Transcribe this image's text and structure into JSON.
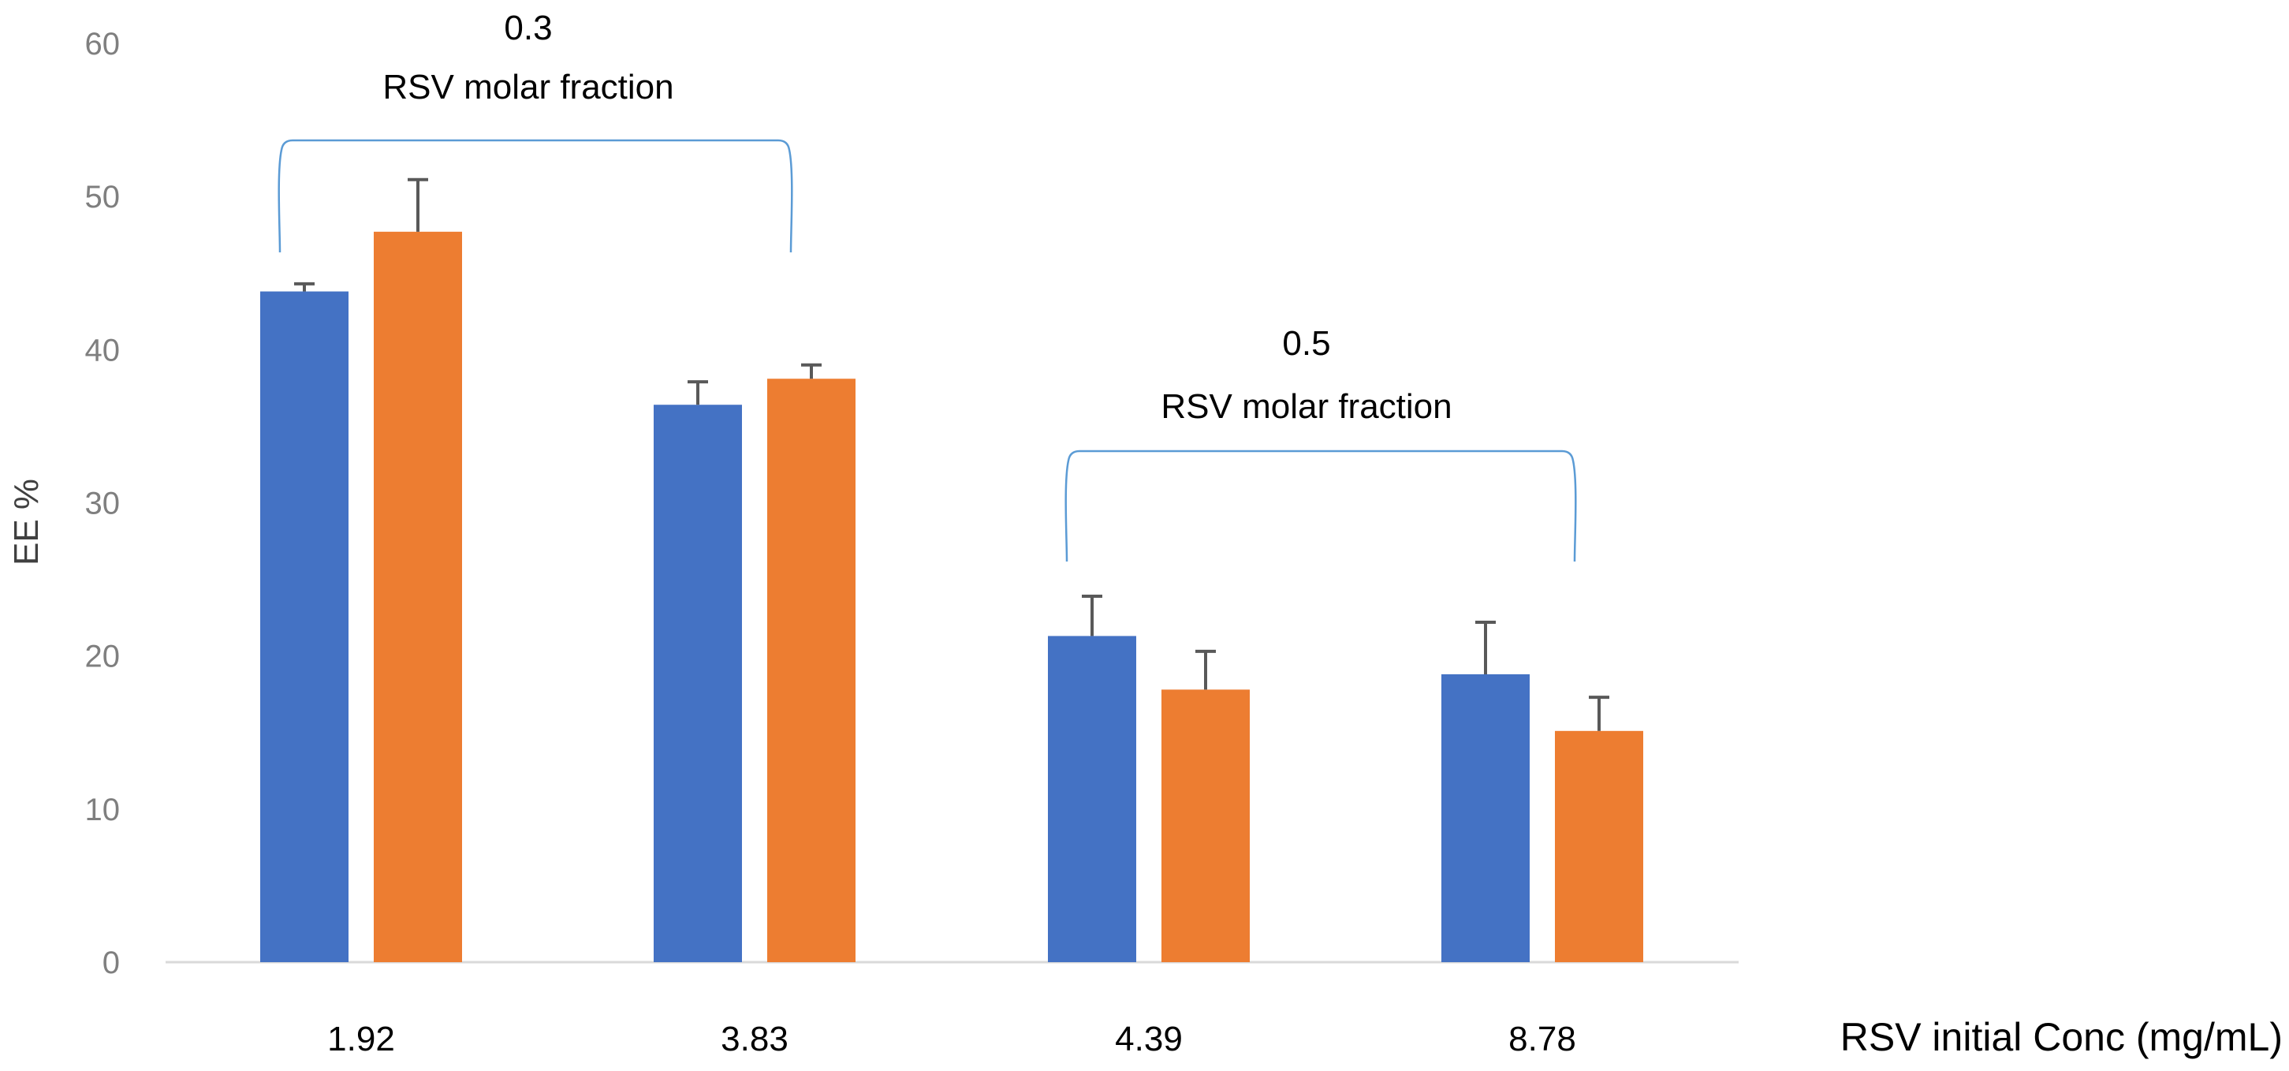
{
  "chart_data": {
    "type": "bar",
    "categories": [
      "1.92",
      "3.83",
      "4.39",
      "8.78"
    ],
    "series": [
      {
        "values": [
          43.8,
          36.4,
          21.3,
          18.8
        ],
        "errors": [
          0.5,
          1.5,
          2.6,
          3.4
        ],
        "color": "#4472c4"
      },
      {
        "values": [
          47.7,
          38.1,
          17.8,
          15.1
        ],
        "errors": [
          3.4,
          0.9,
          2.5,
          2.2
        ],
        "color": "#ed7d31"
      }
    ],
    "xlabel": "RSV initial Conc (mg/mL)",
    "ylabel": "EE %",
    "ylim": [
      0,
      60
    ],
    "yticks": [
      "0",
      "10",
      "20",
      "30",
      "40",
      "50",
      "60"
    ],
    "grid": false,
    "legend": "none",
    "annotations": [
      {
        "value": "0.3",
        "text": "RSV molar fraction",
        "categories": [
          "1.92",
          "3.83"
        ]
      },
      {
        "value": "0.5",
        "text": "RSV molar fraction",
        "categories": [
          "4.39",
          "8.78"
        ]
      }
    ],
    "colors": {
      "axis": "#d9d9d9",
      "error_bar": "#595959",
      "bracket": "#5b9bd5"
    }
  }
}
